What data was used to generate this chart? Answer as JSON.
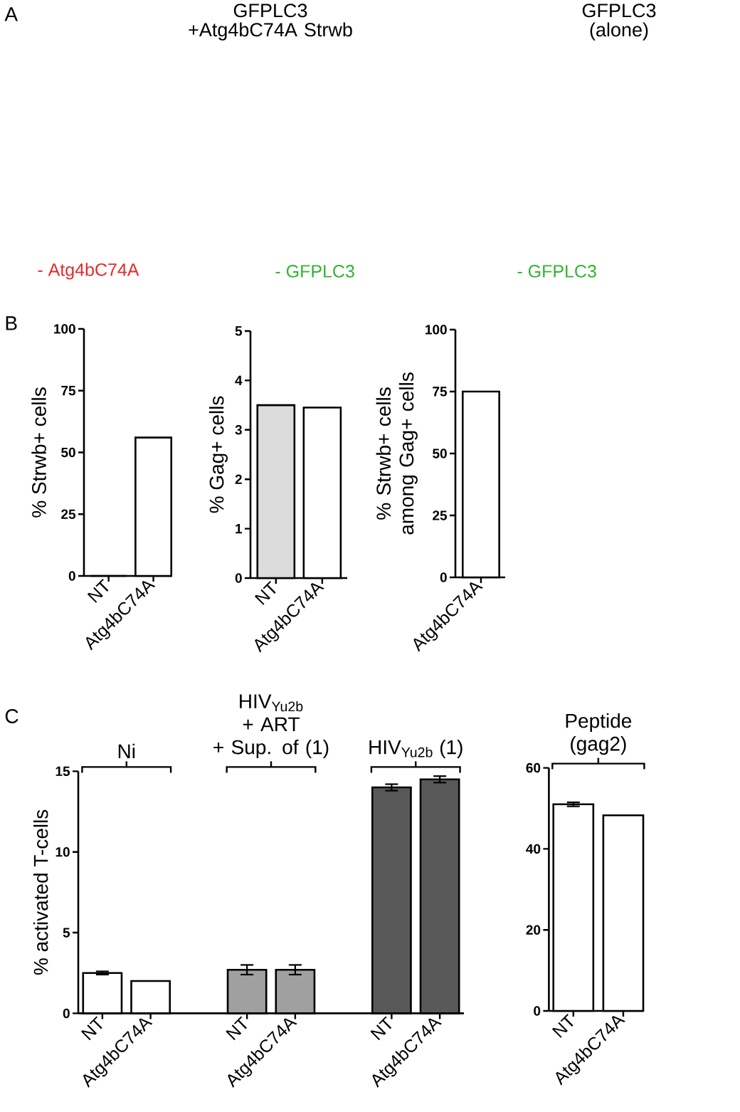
{
  "chart_data": [
    {
      "type": "other",
      "title": "A",
      "annotations": [
        "GFPLC3 +Atg4bC74A Strwb",
        "GFPLC3 (alone)",
        "- Atg4bC74A",
        "- GFPLC3",
        "- GFPLC3"
      ]
    },
    {
      "type": "bar",
      "title": "B",
      "categories": [
        "NT",
        "Atg4bC74A"
      ],
      "ylabel": "% Strwb+ cells",
      "values": [
        0,
        56
      ],
      "color": "#ffffff",
      "ylim": [
        0,
        100
      ],
      "yticks": [
        0,
        25,
        50,
        75,
        100
      ]
    },
    {
      "type": "bar",
      "categories": [
        "NT",
        "Atg4bC74A"
      ],
      "ylabel": "% Gag+ cells",
      "values": [
        3.5,
        3.45
      ],
      "colors": [
        "#dcdcdc",
        "#ffffff"
      ],
      "ylim": [
        0,
        5
      ],
      "yticks": [
        0,
        1,
        2,
        3,
        4,
        5
      ]
    },
    {
      "type": "bar",
      "categories": [
        "Atg4bC74A"
      ],
      "ylabel": "% Strwb+ cells among Gag+ cells",
      "values": [
        75
      ],
      "color": "#ffffff",
      "ylim": [
        0,
        100
      ],
      "yticks": [
        0,
        25,
        50,
        75,
        100
      ]
    },
    {
      "type": "bar",
      "title": "C",
      "categories": [
        "NT",
        "Atg4bC74A",
        null,
        "NT",
        "Atg4bC74A",
        null,
        "NT",
        "Atg4bC74A"
      ],
      "ylabel": "% activated T-cells",
      "values": [
        2.5,
        2.0,
        null,
        2.7,
        2.7,
        null,
        14.0,
        14.5
      ],
      "colors": [
        "#ffffff",
        "#ffffff",
        null,
        "#a0a0a0",
        "#a0a0a0",
        null,
        "#595959",
        "#595959"
      ],
      "errors": [
        0.1,
        null,
        null,
        0.3,
        0.3,
        null,
        0.2,
        0.2
      ],
      "ylim": [
        0,
        15
      ],
      "yticks": [
        0,
        5,
        10,
        15
      ],
      "annotations": [
        "Ni",
        "HIV$_{Yu2b}$ + ART + Sup. of (1)",
        "HIV$_{Yu2b}$ (1)"
      ]
    },
    {
      "type": "bar",
      "categories": [
        "NT",
        "Atg4bC74A"
      ],
      "values": [
        51,
        48.3
      ],
      "color": "#ffffff",
      "errors": [
        0.5,
        null
      ],
      "ylim": [
        0,
        60
      ],
      "yticks": [
        0,
        20,
        40,
        60
      ],
      "annotations": [
        "Peptide (gag2)"
      ]
    }
  ]
}
